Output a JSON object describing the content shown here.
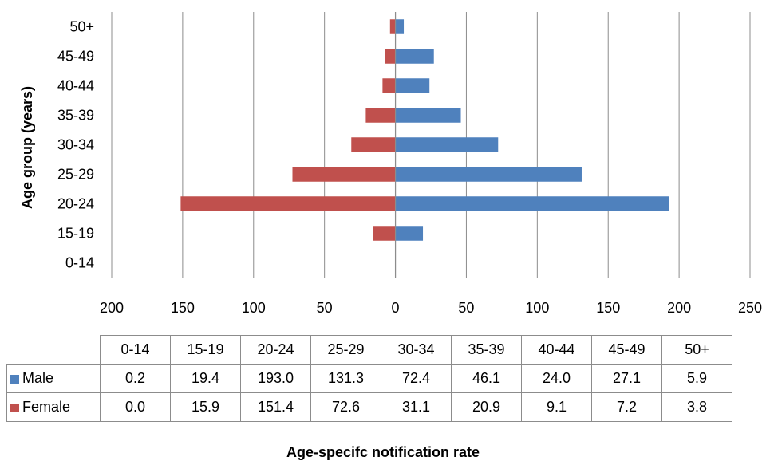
{
  "chart_data": {
    "type": "bar",
    "orientation": "horizontal",
    "layout": "population-pyramid",
    "categories": [
      "0-14",
      "15-19",
      "20-24",
      "25-29",
      "30-34",
      "35-39",
      "40-44",
      "45-49",
      "50+"
    ],
    "series": [
      {
        "name": "Male",
        "color": "#4F81BD",
        "side": "right",
        "values": [
          0.2,
          19.4,
          193.0,
          131.3,
          72.4,
          46.1,
          24.0,
          27.1,
          5.9
        ]
      },
      {
        "name": "Female",
        "color": "#C0504D",
        "side": "left",
        "values": [
          0.0,
          15.9,
          151.4,
          72.6,
          31.1,
          20.9,
          9.1,
          7.2,
          3.8
        ]
      }
    ],
    "table_values": {
      "Male": [
        "0.2",
        "19.4",
        "193.0",
        "131.3",
        "72.4",
        "46.1",
        "24.0",
        "27.1",
        "5.9"
      ],
      "Female": [
        "0.0",
        "15.9",
        "151.4",
        "72.6",
        "31.1",
        "20.9",
        "9.1",
        "7.2",
        "3.8"
      ]
    },
    "x_ticks": [
      "200",
      "150",
      "100",
      "50",
      "0",
      "50",
      "100",
      "150",
      "200",
      "250"
    ],
    "xlim": [
      -200,
      250
    ],
    "xlabel": "Age-specifc notification rate",
    "ylabel": "Age group (years)",
    "grid": "vertical",
    "legend": "data-table"
  }
}
